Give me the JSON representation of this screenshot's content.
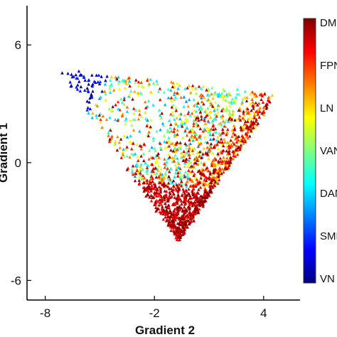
{
  "chart_data": {
    "type": "scatter",
    "title": "",
    "xlabel": "Gradient 2",
    "ylabel": "Gradient 1",
    "xlim": [
      -9,
      6
    ],
    "ylim": [
      -7,
      8
    ],
    "x_ticks": [
      -8,
      -2,
      4
    ],
    "x_tick_labels": [
      "-8",
      "-2",
      "4"
    ],
    "y_ticks": [
      6,
      0,
      -6
    ],
    "y_tick_labels": [
      "6",
      "0",
      "-6"
    ],
    "grid": false,
    "colorbar": {
      "labels": [
        "DMN",
        "FPN",
        "LN",
        "VAN",
        "DAN",
        "SMN",
        "VN"
      ],
      "colormap": "jet",
      "position": "right"
    },
    "point_shape": "triangle",
    "vertices": {
      "top_left": [
        -7.3,
        4.7
      ],
      "top_right": [
        4.6,
        3.4
      ],
      "bottom": [
        -0.7,
        -3.9
      ]
    },
    "colors": {
      "DMN": "#7f0000",
      "FPN": "#ff2a00",
      "LN": "#ffd400",
      "VAN": "#7dff7a",
      "DAN": "#00c8ff",
      "SMN": "#0040ff",
      "VN": "#00007f"
    }
  }
}
